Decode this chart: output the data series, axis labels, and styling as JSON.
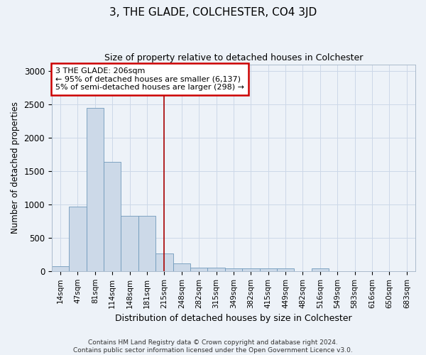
{
  "title": "3, THE GLADE, COLCHESTER, CO4 3JD",
  "subtitle": "Size of property relative to detached houses in Colchester",
  "xlabel": "Distribution of detached houses by size in Colchester",
  "ylabel": "Number of detached properties",
  "bar_color": "#ccd9e8",
  "bar_edge_color": "#7099bb",
  "categories": [
    "14sqm",
    "47sqm",
    "81sqm",
    "114sqm",
    "148sqm",
    "181sqm",
    "215sqm",
    "248sqm",
    "282sqm",
    "315sqm",
    "349sqm",
    "382sqm",
    "415sqm",
    "449sqm",
    "482sqm",
    "516sqm",
    "549sqm",
    "583sqm",
    "616sqm",
    "650sqm",
    "683sqm"
  ],
  "values": [
    70,
    970,
    2450,
    1640,
    830,
    830,
    265,
    120,
    55,
    50,
    45,
    40,
    45,
    45,
    0,
    45,
    0,
    0,
    0,
    0,
    0
  ],
  "vline_x": 6,
  "vline_color": "#aa0000",
  "annotation_text": "3 THE GLADE: 206sqm\n← 95% of detached houses are smaller (6,137)\n5% of semi-detached houses are larger (298) →",
  "annotation_box_color": "#ffffff",
  "annotation_box_edge": "#cc0000",
  "ylim": [
    0,
    3100
  ],
  "yticks": [
    0,
    500,
    1000,
    1500,
    2000,
    2500,
    3000
  ],
  "grid_color": "#ccd8e8",
  "bg_color": "#edf2f8",
  "footer": "Contains HM Land Registry data © Crown copyright and database right 2024.\nContains public sector information licensed under the Open Government Licence v3.0."
}
